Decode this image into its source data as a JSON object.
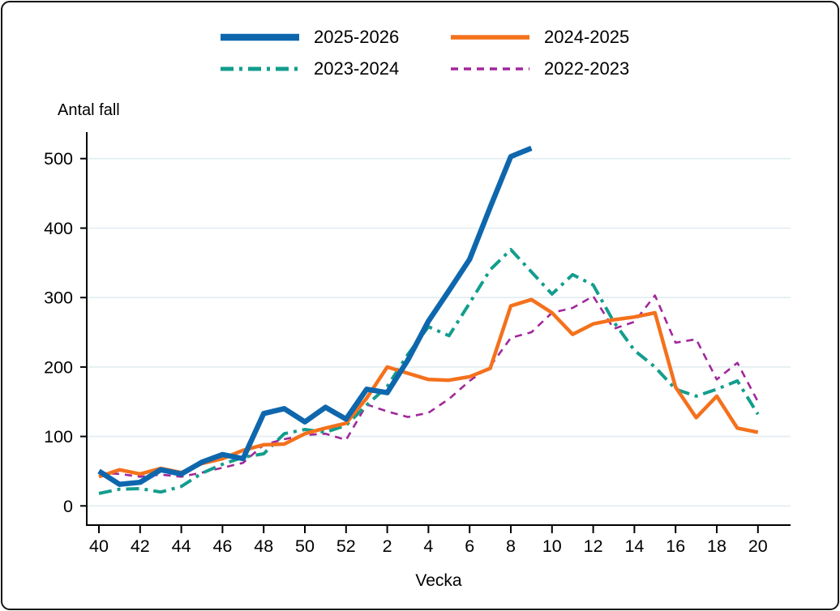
{
  "titles": {
    "y_axis_title": "Antal fall",
    "x_axis_title": "Vecka"
  },
  "chart_data": {
    "type": "line",
    "title": "",
    "ylabel": "Antal fall",
    "xlabel": "Vecka",
    "grid": true,
    "legend_position": "top-center",
    "ylim": [
      0,
      540
    ],
    "y_ticks": [
      0,
      100,
      200,
      300,
      400,
      500
    ],
    "x_categories": [
      "40",
      "41",
      "42",
      "43",
      "44",
      "45",
      "46",
      "47",
      "48",
      "49",
      "50",
      "51",
      "52",
      "1",
      "2",
      "3",
      "4",
      "5",
      "6",
      "7",
      "8",
      "9",
      "10",
      "11",
      "12",
      "13",
      "14",
      "15",
      "16",
      "17",
      "18",
      "19",
      "20"
    ],
    "x_tick_labels": [
      "40",
      "42",
      "44",
      "46",
      "48",
      "50",
      "52",
      "2",
      "4",
      "6",
      "8",
      "10",
      "12",
      "14",
      "16",
      "18",
      "20"
    ],
    "axis_color": "#000000",
    "gridline_color": "#e2edf1",
    "series": [
      {
        "name": "2025-2026",
        "color": "#0e67ad",
        "style": "solid",
        "width": 6.5,
        "values": [
          50,
          31,
          34,
          52,
          46,
          63,
          74,
          68,
          133,
          140,
          121,
          142,
          125,
          168,
          163,
          210,
          266,
          310,
          355,
          430,
          503,
          515
        ]
      },
      {
        "name": "2024-2025",
        "color": "#f4711c",
        "style": "solid",
        "width": 4.5,
        "values": [
          42,
          52,
          46,
          54,
          48,
          61,
          68,
          80,
          88,
          89,
          104,
          112,
          119,
          155,
          200,
          191,
          182,
          181,
          186,
          198,
          288,
          297,
          278,
          247,
          262,
          268,
          272,
          278,
          171,
          127,
          158,
          112,
          106
        ]
      },
      {
        "name": "2023-2024",
        "color": "#139d8d",
        "style": "dashdot",
        "width": 4,
        "values": [
          18,
          24,
          25,
          20,
          28,
          47,
          60,
          70,
          75,
          104,
          110,
          106,
          116,
          145,
          172,
          218,
          258,
          245,
          292,
          340,
          369,
          337,
          305,
          333,
          318,
          265,
          224,
          200,
          168,
          158,
          168,
          180,
          132
        ]
      },
      {
        "name": "2022-2023",
        "color": "#a1279c",
        "style": "dashed",
        "width": 2.6,
        "values": [
          48,
          46,
          42,
          45,
          42,
          48,
          55,
          62,
          88,
          96,
          102,
          104,
          95,
          146,
          136,
          128,
          134,
          154,
          180,
          201,
          242,
          250,
          278,
          285,
          302,
          255,
          265,
          303,
          235,
          240,
          182,
          206,
          150
        ]
      }
    ]
  }
}
